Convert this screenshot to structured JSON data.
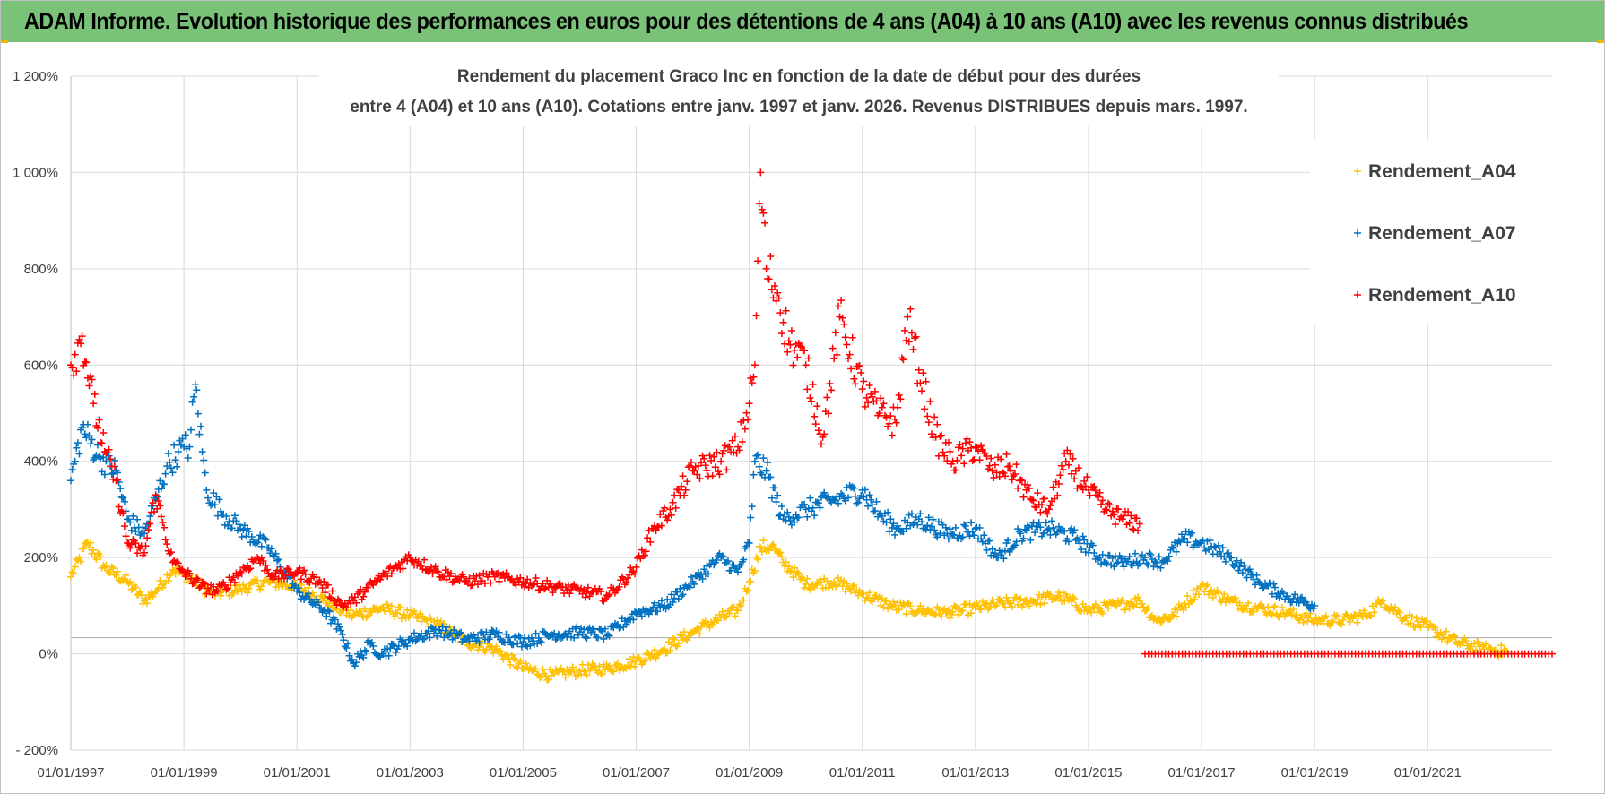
{
  "banner": {
    "title": "ADAM Informe. Evolution historique des performances en euros pour des détentions de 4 ans (A04) à 10 ans (A10) avec les revenus connus distribués"
  },
  "chart_data": {
    "type": "scatter",
    "title_line1": "Rendement du placement Graco Inc en fonction de la date de début pour des durées",
    "title_line2": "entre 4 (A04) et 10 ans (A10).  Cotations entre janv. 1997 et janv. 2026.  Revenus DISTRIBUES depuis mars. 1997.",
    "xlabel": "",
    "ylabel": "",
    "x_range": [
      1997.0,
      2023.2
    ],
    "ylim": [
      -200,
      1200
    ],
    "y_ticks": [
      -200,
      0,
      200,
      400,
      600,
      800,
      1000,
      1200
    ],
    "y_tick_labels": [
      "- 200%",
      "0%",
      "200%",
      "400%",
      "600%",
      "800%",
      "1 000%",
      "1 200%"
    ],
    "x_ticks": [
      1997,
      1999,
      2001,
      2003,
      2005,
      2007,
      2009,
      2011,
      2013,
      2015,
      2017,
      2019,
      2021
    ],
    "x_tick_labels": [
      "01/01/1997",
      "01/01/1999",
      "01/01/2001",
      "01/01/2003",
      "01/01/2005",
      "01/01/2007",
      "01/01/2009",
      "01/01/2011",
      "01/01/2013",
      "01/01/2015",
      "01/01/2017",
      "01/01/2019",
      "01/01/2021"
    ],
    "grid": true,
    "legend_position": "top-right",
    "marker": "+",
    "series": [
      {
        "name": "Rendement_A04",
        "color": "#ffc000",
        "x": [
          1997.0,
          1997.3,
          1997.6,
          1998.0,
          1998.3,
          1998.5,
          1998.8,
          1999.0,
          1999.2,
          1999.5,
          2000.0,
          2000.5,
          2001.0,
          2001.5,
          2001.8,
          2002.0,
          2002.5,
          2003.0,
          2003.5,
          2004.0,
          2004.5,
          2005.0,
          2005.5,
          2006.0,
          2006.5,
          2007.0,
          2007.5,
          2008.0,
          2008.5,
          2008.8,
          2009.0,
          2009.2,
          2009.4,
          2009.6,
          2010.0,
          2010.5,
          2011.0,
          2011.5,
          2012.0,
          2012.5,
          2013.0,
          2013.5,
          2014.0,
          2014.5,
          2015.0,
          2015.5,
          2015.9,
          2016.2,
          2016.5,
          2017.0,
          2017.5,
          2018.0,
          2018.5,
          2019.0,
          2019.5,
          2019.9,
          2020.2,
          2020.6,
          2021.0,
          2021.5,
          2022.0,
          2022.4
        ],
        "y": [
          160,
          230,
          180,
          150,
          110,
          130,
          175,
          165,
          150,
          125,
          135,
          150,
          140,
          110,
          90,
          80,
          95,
          80,
          60,
          25,
          10,
          -30,
          -45,
          -35,
          -30,
          -15,
          10,
          45,
          75,
          90,
          150,
          220,
          225,
          190,
          145,
          150,
          125,
          100,
          90,
          85,
          95,
          105,
          110,
          120,
          90,
          100,
          110,
          70,
          80,
          140,
          110,
          95,
          85,
          70,
          70,
          80,
          110,
          75,
          55,
          25,
          10,
          5
        ]
      },
      {
        "name": "Rendement_A07",
        "color": "#0070c0",
        "x": [
          1997.0,
          1997.2,
          1997.5,
          1997.8,
          1998.0,
          1998.3,
          1998.5,
          1998.7,
          1998.9,
          1999.0,
          1999.1,
          1999.2,
          1999.4,
          1999.7,
          2000.0,
          2000.5,
          2001.0,
          2001.5,
          2001.8,
          2002.0,
          2002.3,
          2002.5,
          2003.0,
          2003.5,
          2004.0,
          2004.5,
          2005.0,
          2005.5,
          2006.0,
          2006.5,
          2007.0,
          2007.5,
          2008.0,
          2008.5,
          2008.8,
          2009.0,
          2009.1,
          2009.3,
          2009.6,
          2010.0,
          2010.5,
          2011.0,
          2011.3,
          2011.6,
          2012.0,
          2012.5,
          2013.0,
          2013.4,
          2013.8,
          2014.3,
          2014.8,
          2015.2,
          2015.6,
          2016.0,
          2016.3,
          2016.7,
          2017.0,
          2017.5,
          2018.0,
          2018.5,
          2019.0
        ],
        "y": [
          360,
          470,
          410,
          380,
          280,
          250,
          320,
          390,
          420,
          430,
          430,
          560,
          340,
          290,
          260,
          220,
          130,
          90,
          40,
          -20,
          20,
          0,
          30,
          50,
          30,
          40,
          25,
          40,
          45,
          40,
          85,
          100,
          150,
          200,
          170,
          230,
          400,
          380,
          280,
          300,
          320,
          340,
          290,
          260,
          280,
          250,
          260,
          200,
          250,
          260,
          240,
          200,
          190,
          200,
          190,
          240,
          230,
          200,
          150,
          120,
          100
        ]
      },
      {
        "name": "Rendement_A10",
        "color": "#ff0000",
        "x": [
          1997.0,
          1997.2,
          1997.4,
          1997.6,
          1997.8,
          1998.0,
          1998.3,
          1998.5,
          1998.8,
          1999.0,
          1999.3,
          1999.6,
          2000.0,
          2000.3,
          2000.6,
          2001.0,
          2001.4,
          2001.8,
          2002.0,
          2002.5,
          2003.0,
          2003.5,
          2004.0,
          2004.5,
          2005.0,
          2005.5,
          2006.0,
          2006.5,
          2007.0,
          2007.3,
          2007.6,
          2008.0,
          2008.5,
          2008.8,
          2009.0,
          2009.1,
          2009.2,
          2009.3,
          2009.5,
          2009.7,
          2010.0,
          2010.3,
          2010.6,
          2011.0,
          2011.3,
          2011.6,
          2011.8,
          2012.0,
          2012.3,
          2012.6,
          2013.0,
          2013.3,
          2013.6,
          2014.0,
          2014.3,
          2014.6,
          2015.0,
          2015.3,
          2015.6,
          2015.9
        ],
        "y": [
          600,
          660,
          520,
          420,
          360,
          230,
          210,
          330,
          190,
          170,
          140,
          130,
          170,
          200,
          160,
          170,
          150,
          100,
          110,
          160,
          200,
          170,
          150,
          160,
          150,
          140,
          130,
          120,
          180,
          260,
          300,
          380,
          400,
          430,
          520,
          600,
          1000,
          800,
          750,
          650,
          600,
          450,
          700,
          550,
          500,
          480,
          700,
          590,
          450,
          400,
          430,
          380,
          390,
          320,
          300,
          400,
          340,
          300,
          280,
          270
        ]
      }
    ],
    "zero_segment": {
      "color": "#ff0000",
      "x_start": 2016.0,
      "x_end": 2023.2,
      "y": 0
    }
  }
}
